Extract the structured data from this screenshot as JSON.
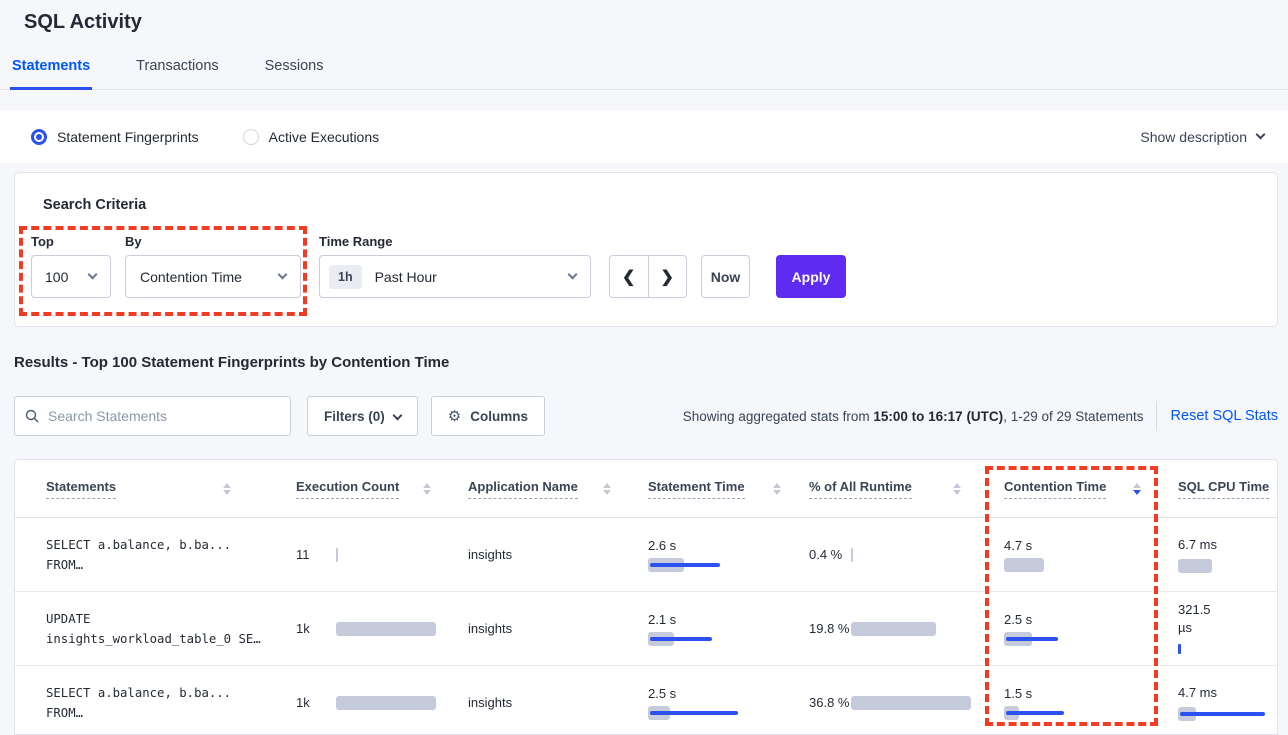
{
  "page": {
    "title": "SQL Activity"
  },
  "tabs": [
    {
      "label": "Statements",
      "active": true
    },
    {
      "label": "Transactions",
      "active": false
    },
    {
      "label": "Sessions",
      "active": false
    }
  ],
  "view_toggle": {
    "options": [
      {
        "label": "Statement Fingerprints",
        "selected": true
      },
      {
        "label": "Active Executions",
        "selected": false
      }
    ],
    "show_description_label": "Show description"
  },
  "search_criteria": {
    "title": "Search Criteria",
    "top": {
      "label": "Top",
      "value": "100"
    },
    "by": {
      "label": "By",
      "value": "Contention Time"
    },
    "time_range": {
      "label": "Time Range",
      "badge": "1h",
      "value": "Past Hour"
    },
    "prev_label": "❮",
    "next_label": "❯",
    "now_label": "Now",
    "apply_label": "Apply"
  },
  "results": {
    "heading": "Results - Top 100 Statement Fingerprints by Contention Time",
    "search_placeholder": "Search Statements",
    "filters_label": "Filters (0)",
    "columns_label": "Columns",
    "gear_glyph": "⚙",
    "stats_prefix": "Showing aggregated stats from ",
    "stats_bold": "15:00 to 16:17 (UTC)",
    "stats_suffix": ", 1-29 of 29 Statements",
    "reset_label": "Reset SQL Stats"
  },
  "table": {
    "headers": [
      {
        "label": "Statements",
        "sort": "none"
      },
      {
        "label": "Execution Count",
        "sort": "none"
      },
      {
        "label": "Application Name",
        "sort": "none"
      },
      {
        "label": "Statement Time",
        "sort": "none"
      },
      {
        "label": "% of All Runtime",
        "sort": "none"
      },
      {
        "label": "Contention Time",
        "sort": "desc"
      },
      {
        "label": "SQL CPU Time",
        "sort": "hidden"
      }
    ],
    "rows": [
      {
        "statement_line1": "SELECT a.balance, b.ba...",
        "statement_line2": "FROM…",
        "execution_count": "11",
        "exec_bar": {
          "grey": 2,
          "blue": 0,
          "tick": false
        },
        "application": "insights",
        "statement_time": "2.6 s",
        "stmt_bar": {
          "grey": 36,
          "blue": 70,
          "tick": false
        },
        "runtime_pct": "0.4 %",
        "runtime_bar": {
          "grey": 2,
          "blue": 0,
          "tick": false
        },
        "contention_time": "4.7 s",
        "contention_bar": {
          "grey": 40,
          "blue": 0,
          "tick": false
        },
        "sql_cpu": "6.7 ms",
        "cpu_bar": {
          "grey": 34,
          "blue": 0,
          "tick": false
        }
      },
      {
        "statement_line1": "UPDATE",
        "statement_line2": "insights_workload_table_0 SE…",
        "execution_count": "1k",
        "exec_bar": {
          "grey": 100,
          "blue": 0,
          "tick": false
        },
        "application": "insights",
        "statement_time": "2.1 s",
        "stmt_bar": {
          "grey": 26,
          "blue": 62,
          "tick": false
        },
        "runtime_pct": "19.8 %",
        "runtime_bar": {
          "grey": 85,
          "blue": 0,
          "tick": false
        },
        "contention_time": "2.5 s",
        "contention_bar": {
          "grey": 28,
          "blue": 52,
          "tick": false
        },
        "sql_cpu": "321.5 µs",
        "cpu_bar": {
          "grey": 0,
          "blue": 0,
          "tick": true
        }
      },
      {
        "statement_line1": "SELECT a.balance, b.ba...",
        "statement_line2": "FROM…",
        "execution_count": "1k",
        "exec_bar": {
          "grey": 100,
          "blue": 0,
          "tick": false
        },
        "application": "insights",
        "statement_time": "2.5 s",
        "stmt_bar": {
          "grey": 22,
          "blue": 88,
          "tick": false
        },
        "runtime_pct": "36.8 %",
        "runtime_bar": {
          "grey": 120,
          "blue": 0,
          "tick": false
        },
        "contention_time": "1.5 s",
        "contention_bar": {
          "grey": 15,
          "blue": 58,
          "tick": false
        },
        "sql_cpu": "4.7 ms",
        "cpu_bar": {
          "grey": 18,
          "blue": 85,
          "tick": false
        }
      }
    ]
  },
  "colors": {
    "accent_blue": "#0055ff",
    "bar_blue": "#2b51f0",
    "bar_grey": "#c5cbda",
    "apply_purple": "#5e2bf0",
    "annotation_red": "#f23b23"
  }
}
